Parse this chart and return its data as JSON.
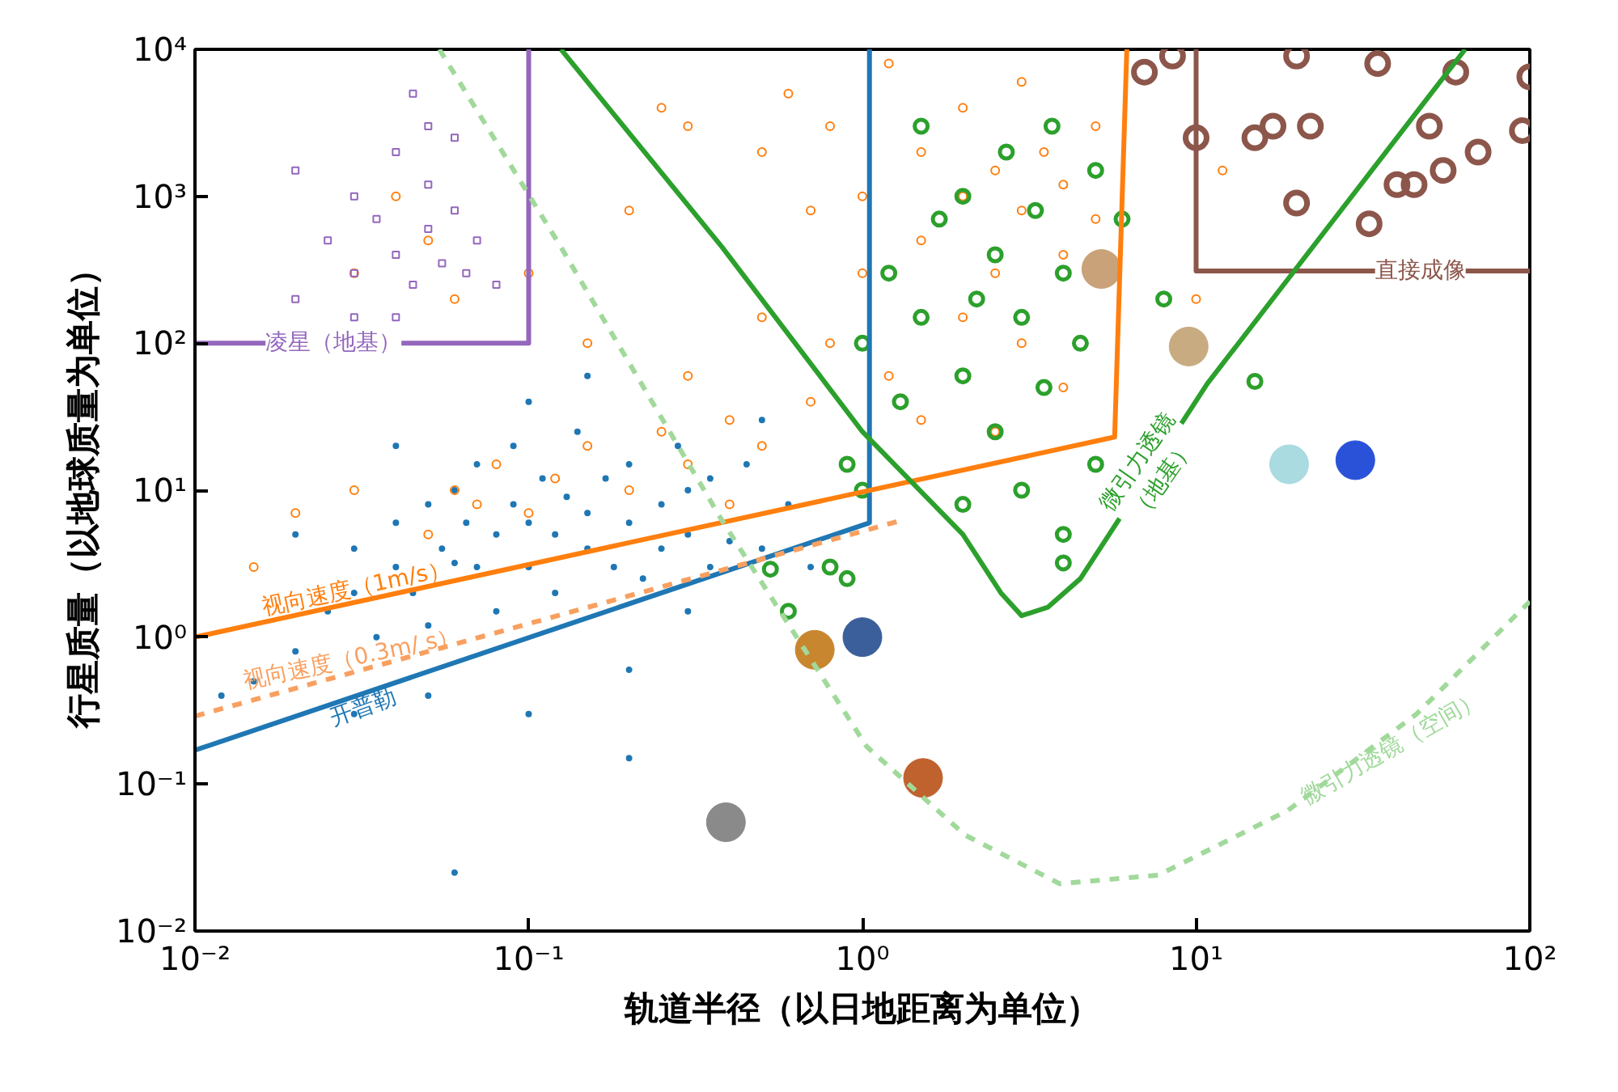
{
  "chart_data": {
    "type": "scatter",
    "xlabel": "轨道半径（以日地距离为单位）",
    "ylabel": "行星质量（以地球质量为单位）",
    "log": "xy",
    "grid": false,
    "xlim": [
      0.01,
      100
    ],
    "ylim": [
      0.01,
      10000
    ],
    "xticks": [
      {
        "value": 0.01,
        "label": "10⁻²"
      },
      {
        "value": 0.1,
        "label": "10⁻¹"
      },
      {
        "value": 1,
        "label": "10⁰"
      },
      {
        "value": 10,
        "label": "10¹"
      },
      {
        "value": 100,
        "label": "10²"
      }
    ],
    "yticks": [
      {
        "value": 0.01,
        "label": "10⁻²"
      },
      {
        "value": 0.1,
        "label": "10⁻¹"
      },
      {
        "value": 1,
        "label": "10⁰"
      },
      {
        "value": 10,
        "label": "10¹"
      },
      {
        "value": 100,
        "label": "10²"
      },
      {
        "value": 1000,
        "label": "10³"
      },
      {
        "value": 10000,
        "label": "10⁴"
      }
    ],
    "series": [
      {
        "type": "scatter",
        "color": "#1f77b4",
        "marker": "circle",
        "x": [
          0.02,
          0.025,
          0.03,
          0.03,
          0.035,
          0.04,
          0.04,
          0.045,
          0.05,
          0.05,
          0.055,
          0.06,
          0.06,
          0.065,
          0.07,
          0.07,
          0.08,
          0.08,
          0.09,
          0.09,
          0.1,
          0.1,
          0.11,
          0.12,
          0.12,
          0.13,
          0.14,
          0.15,
          0.15,
          0.17,
          0.18,
          0.2,
          0.2,
          0.22,
          0.25,
          0.25,
          0.28,
          0.3,
          0.3,
          0.35,
          0.35,
          0.4,
          0.45,
          0.5,
          0.6,
          0.7,
          0.015,
          0.012,
          0.03,
          0.05,
          0.1,
          0.2,
          0.3,
          0.06,
          0.04,
          0.02,
          0.1,
          0.15,
          0.2,
          0.5
        ],
        "values": [
          0.8,
          1.5,
          2,
          4,
          1,
          3,
          6,
          2,
          8,
          1.2,
          4,
          10,
          3.2,
          6,
          3,
          15,
          5,
          1.5,
          8,
          20,
          3,
          6,
          12,
          2,
          5,
          9,
          25,
          4,
          7,
          12,
          3,
          6,
          15,
          2.5,
          8,
          4,
          20,
          5,
          10,
          3,
          12,
          4.5,
          15,
          4,
          8,
          3,
          0.5,
          0.4,
          0.3,
          0.4,
          0.3,
          0.6,
          1.5,
          0.025,
          20,
          5,
          40,
          60,
          0.15,
          30
        ]
      },
      {
        "type": "scatter",
        "color": "#ff7f0e",
        "marker": "circle",
        "x": [
          0.05,
          0.06,
          0.07,
          0.08,
          0.1,
          0.12,
          0.15,
          0.2,
          0.25,
          0.3,
          0.4,
          0.4,
          0.5,
          0.015,
          0.03,
          0.02,
          0.05,
          0.03,
          0.04,
          0.06,
          0.1,
          0.2,
          0.3,
          0.5,
          0.6,
          0.7,
          0.8,
          1,
          1,
          1.2,
          1.5,
          1.5,
          2,
          2,
          2.5,
          2.5,
          3,
          3,
          3.5,
          4,
          4,
          5,
          5,
          0.8,
          1.2,
          2,
          3,
          4,
          1.5,
          0.7,
          0.5,
          0.3,
          2.5,
          0.15,
          10,
          12,
          0.25
        ],
        "values": [
          5,
          10,
          8,
          15,
          7,
          12,
          20,
          10,
          25,
          15,
          8,
          30,
          20,
          3,
          10,
          7,
          500,
          300,
          1000,
          200,
          300,
          800,
          3000,
          2000,
          5000,
          800,
          3000,
          1000,
          300,
          8000,
          500,
          2000,
          1000,
          4000,
          300,
          1500,
          800,
          6000,
          2000,
          400,
          1200,
          3000,
          700,
          100,
          60,
          150,
          100,
          50,
          30,
          40,
          150,
          60,
          25,
          100,
          200,
          1500,
          4000
        ]
      },
      {
        "type": "scatter",
        "color": "#9467bd",
        "marker": "square",
        "x": [
          0.02,
          0.025,
          0.03,
          0.03,
          0.035,
          0.04,
          0.04,
          0.045,
          0.05,
          0.05,
          0.055,
          0.06,
          0.065,
          0.07,
          0.08,
          0.03,
          0.04,
          0.05,
          0.06,
          0.02,
          0.045
        ],
        "values": [
          200,
          500,
          300,
          1000,
          700,
          400,
          2000,
          250,
          600,
          1200,
          350,
          800,
          300,
          500,
          250,
          150,
          150,
          3000,
          2500,
          1500,
          5000
        ]
      },
      {
        "type": "scatter",
        "color": "#2ca02c",
        "marker": "circle",
        "x": [
          0.6,
          0.53,
          0.8,
          0.9,
          1,
          1,
          1.2,
          1.3,
          1.5,
          1.5,
          1.7,
          2,
          2,
          2,
          2.2,
          2.5,
          2.5,
          2.7,
          3,
          3,
          3.3,
          3.5,
          3.7,
          4,
          4,
          4.5,
          5,
          5,
          6,
          8,
          15,
          0.9,
          4
        ],
        "values": [
          1.5,
          2.9,
          3,
          15,
          10,
          100,
          300,
          40,
          3000,
          150,
          700,
          8,
          60,
          1000,
          200,
          400,
          25,
          2000,
          10,
          150,
          800,
          50,
          3000,
          5,
          300,
          100,
          15,
          1500,
          700,
          200,
          55,
          2.5,
          3.2
        ]
      },
      {
        "type": "scatter",
        "color": "#8c564b",
        "marker": "circle",
        "x": [
          7,
          8.5,
          10,
          15,
          17,
          20,
          22,
          20,
          33,
          35,
          40,
          45,
          50,
          55,
          60,
          70,
          95,
          100
        ],
        "values": [
          7000,
          9000,
          2500,
          2500,
          3000,
          9000,
          3000,
          900,
          650,
          8000,
          1200,
          1200,
          3000,
          1500,
          7000,
          2000,
          2800,
          6500
        ]
      },
      {
        "type": "scatter",
        "marker": "circle",
        "colors": [
          "#8a8a8a",
          "#c8862f",
          "#3a5f9a",
          "#c0622e",
          "#c9a27a",
          "#c8ab80",
          "#a9dbe0",
          "#2a52d9"
        ],
        "x": [
          0.39,
          0.72,
          1,
          1.52,
          5.2,
          9.5,
          19,
          30
        ],
        "values": [
          0.055,
          0.82,
          1,
          0.11,
          320,
          95,
          15,
          16
        ]
      },
      {
        "type": "line",
        "color": "#1f77b4",
        "line_style": "solid",
        "x": [
          0.01,
          1.05,
          1.05
        ],
        "values": [
          0.17,
          6,
          10000
        ]
      },
      {
        "type": "line",
        "color": "#ff7f0e",
        "line_style": "solid",
        "x": [
          0.01,
          5.7,
          6.2
        ],
        "values": [
          1.0,
          23,
          10000
        ]
      },
      {
        "type": "line",
        "color": "#f9a060",
        "line_style": "dashed",
        "x": [
          0.01,
          1.3
        ],
        "values": [
          0.29,
          6.2
        ]
      },
      {
        "type": "line",
        "color": "#9467bd",
        "line_style": "solid",
        "x": [
          0.1,
          0.1,
          0.01
        ],
        "values": [
          10000,
          100,
          100
        ]
      },
      {
        "type": "line",
        "color": "#8c564b",
        "line_style": "solid",
        "x": [
          10,
          10,
          100
        ],
        "values": [
          10000,
          310,
          310
        ]
      },
      {
        "type": "line",
        "color": "#2ca02c",
        "line_style": "solid",
        "x": [
          0.125,
          0.38,
          1.0,
          2.0,
          2.6,
          3.0,
          3.6,
          4.5,
          10.8,
          64
        ],
        "values": [
          10000,
          450,
          25,
          5,
          2,
          1.4,
          1.6,
          2.5,
          53,
          10000
        ]
      },
      {
        "type": "line",
        "color": "#a1d99b",
        "line_style": "dashed",
        "x": [
          0.054,
          0.125,
          0.38,
          1.03,
          2.03,
          3.9,
          7.7,
          18.8,
          45.8,
          100
        ],
        "values": [
          10000,
          450,
          6.2,
          0.18,
          0.045,
          0.021,
          0.024,
          0.066,
          0.3,
          1.75
        ]
      }
    ],
    "annotations": [
      {
        "text": "开普勒",
        "x": 0.031,
        "y": 0.4
      },
      {
        "text": "视向速度（1m/s）",
        "x": 0.031,
        "y": 1.75
      },
      {
        "text": "视向速度（0.3m/ s）",
        "x": 0.03,
        "y": 0.58
      },
      {
        "text": "凌星（地基）",
        "x": 0.026,
        "y": 100
      },
      {
        "text": "直接成像",
        "x": 47,
        "y": 310
      },
      {
        "text": "微引力透镜\n（地基）",
        "x": 7.3,
        "y": 13.5
      },
      {
        "text": "微引力透镜（空间）",
        "x": 36.9,
        "y": 0.21
      }
    ]
  }
}
